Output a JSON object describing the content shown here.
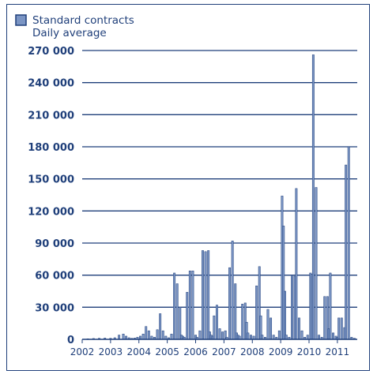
{
  "chart_data": {
    "type": "bar",
    "title": "",
    "xlabel": "",
    "ylabel": "",
    "legend": {
      "position": "top-left",
      "label_line1": "Standard contracts",
      "label_line2": "Daily average"
    },
    "ylim": [
      0,
      270000
    ],
    "yticks": [
      0,
      30000,
      60000,
      90000,
      120000,
      150000,
      180000,
      210000,
      240000,
      270000
    ],
    "ytick_labels": [
      "0",
      "30 000",
      "60 000",
      "90 000",
      "120 000",
      "150 000",
      "180 000",
      "210 000",
      "240 000",
      "270 000"
    ],
    "xlim": [
      2002.0,
      2011.7
    ],
    "xticks": [
      2002,
      2003,
      2004,
      2005,
      2006,
      2007,
      2008,
      2009,
      2010,
      2011
    ],
    "xtick_labels": [
      "2002",
      "2003",
      "2004",
      "2005",
      "2006",
      "2007",
      "2008",
      "2009",
      "2010",
      "2011"
    ],
    "grid": "horizontal",
    "colors": {
      "bar_fill": "#7b95c4",
      "bar_stroke": "#1f3f7a",
      "grid": "#1f3f7a",
      "text": "#1f3f7a"
    },
    "series": [
      {
        "name": "Standard contracts",
        "x": [
          2002.2,
          2002.4,
          2002.6,
          2002.8,
          2003.0,
          2003.15,
          2003.3,
          2003.45,
          2003.55,
          2003.65,
          2003.75,
          2003.85,
          2003.95,
          2004.05,
          2004.15,
          2004.25,
          2004.35,
          2004.45,
          2004.55,
          2004.65,
          2004.75,
          2004.85,
          2004.95,
          2005.05,
          2005.15,
          2005.25,
          2005.35,
          2005.45,
          2005.5,
          2005.55,
          2005.6,
          2005.7,
          2005.8,
          2005.9,
          2006.0,
          2006.05,
          2006.15,
          2006.25,
          2006.35,
          2006.45,
          2006.5,
          2006.55,
          2006.6,
          2006.65,
          2006.75,
          2006.85,
          2006.95,
          2007.05,
          2007.1,
          2007.2,
          2007.3,
          2007.4,
          2007.45,
          2007.5,
          2007.55,
          2007.65,
          2007.75,
          2007.8,
          2007.85,
          2007.95,
          2008.05,
          2008.15,
          2008.25,
          2008.3,
          2008.35,
          2008.45,
          2008.55,
          2008.65,
          2008.75,
          2008.85,
          2008.95,
          2009.05,
          2009.1,
          2009.15,
          2009.2,
          2009.3,
          2009.4,
          2009.5,
          2009.55,
          2009.65,
          2009.75,
          2009.85,
          2009.95,
          2010.05,
          2010.1,
          2010.15,
          2010.25,
          2010.35,
          2010.45,
          2010.55,
          2010.65,
          2010.7,
          2010.75,
          2010.85,
          2010.95,
          2011.0,
          2011.05,
          2011.15,
          2011.25,
          2011.3,
          2011.4,
          2011.5,
          2011.6
        ],
        "values": [
          500,
          800,
          1000,
          1200,
          1000,
          1500,
          4000,
          5000,
          3000,
          1500,
          1000,
          1200,
          2000,
          3000,
          5000,
          12000,
          8000,
          3000,
          2000,
          9000,
          24000,
          8000,
          3000,
          1500,
          5000,
          62000,
          52000,
          30000,
          4000,
          3000,
          2000,
          44000,
          64000,
          64000,
          4000,
          2000,
          8000,
          83000,
          82000,
          83000,
          7000,
          4000,
          3000,
          22000,
          32000,
          10000,
          7000,
          8000,
          2000,
          67000,
          92000,
          52000,
          6000,
          4000,
          3000,
          33000,
          34000,
          16000,
          6000,
          4000,
          3000,
          50000,
          68000,
          22000,
          4000,
          2000,
          28000,
          20000,
          4000,
          2000,
          8000,
          134000,
          106000,
          45000,
          4000,
          2000,
          60000,
          59000,
          141000,
          20000,
          8000,
          2000,
          4000,
          62000,
          61000,
          266000,
          142000,
          4000,
          2000,
          40000,
          40000,
          10000,
          62000,
          6000,
          3000,
          2000,
          20000,
          20000,
          11000,
          163000,
          180000,
          2000,
          1000
        ]
      }
    ]
  }
}
